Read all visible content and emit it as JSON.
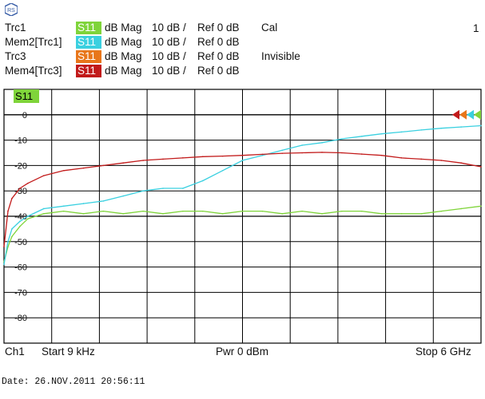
{
  "header": {
    "traces": [
      {
        "name": "Trc1",
        "badge": "S11",
        "badge_color": "#7fd43a",
        "format": "dB Mag",
        "scale": "10 dB /",
        "ref": "Ref 0 dB",
        "note": "Cal"
      },
      {
        "name": "Mem2[Trc1]",
        "badge": "S11",
        "badge_color": "#3ad0e0",
        "format": "dB Mag",
        "scale": "10 dB /",
        "ref": "Ref 0 dB",
        "note": ""
      },
      {
        "name": "Trc3",
        "badge": "S11",
        "badge_color": "#e8761a",
        "format": "dB Mag",
        "scale": "10 dB /",
        "ref": "Ref 0 dB",
        "note": "Invisible"
      },
      {
        "name": "Mem4[Trc3]",
        "badge": "S11",
        "badge_color": "#c21a1a",
        "format": "dB Mag",
        "scale": "10 dB /",
        "ref": "Ref 0 dB",
        "note": ""
      }
    ],
    "window_number": "1",
    "logo_icon": "rohde-schwarz-logo-icon"
  },
  "diagram": {
    "active_trace_label": "S11"
  },
  "footer": {
    "channel": "Ch1",
    "start": "Start  9 kHz",
    "power": "Pwr  0 dBm",
    "stop": "Stop  6 GHz"
  },
  "date_line": "Date: 26.NOV.2011   20:56:11",
  "chart_data": {
    "type": "line",
    "title": "",
    "xlabel": "",
    "ylabel": "",
    "xlim": [
      9e-06,
      6.0
    ],
    "x_unit": "GHz",
    "ylim": [
      -90,
      10
    ],
    "y_ticks": [
      0,
      -10,
      -20,
      -30,
      -40,
      -50,
      -60,
      -70,
      -80
    ],
    "y_tick_labels": [
      "0",
      "-10",
      "-20",
      "-30",
      "-40",
      "-50",
      "-60",
      "-70",
      "-80"
    ],
    "grid": true,
    "series": [
      {
        "color": "#7fd43a",
        "x": [
          0.0,
          0.05,
          0.1,
          0.2,
          0.3,
          0.5,
          0.75,
          1.0,
          1.25,
          1.5,
          1.75,
          2.0,
          2.25,
          2.5,
          2.75,
          3.0,
          3.25,
          3.5,
          3.75,
          4.0,
          4.25,
          4.5,
          4.75,
          5.0,
          5.25,
          5.5,
          5.75,
          6.0
        ],
        "y": [
          -58,
          -52,
          -48,
          -44,
          -41,
          -39,
          -38,
          -39,
          -38,
          -39,
          -38,
          -39,
          -38,
          -38,
          -39,
          -38,
          -38,
          -39,
          -38,
          -39,
          -38,
          -38,
          -39,
          -39,
          -39,
          -38,
          -37,
          -36
        ]
      },
      {
        "color": "#3ad0e0",
        "x": [
          0.0,
          0.05,
          0.1,
          0.2,
          0.3,
          0.5,
          0.75,
          1.0,
          1.25,
          1.5,
          1.75,
          2.0,
          2.25,
          2.5,
          2.75,
          3.0,
          3.25,
          3.5,
          3.75,
          4.0,
          4.25,
          4.5,
          4.75,
          5.0,
          5.25,
          5.5,
          5.75,
          6.0
        ],
        "y": [
          -59,
          -50,
          -45,
          -42,
          -40,
          -37,
          -36,
          -35,
          -34,
          -32,
          -30,
          -29,
          -29,
          -26,
          -22,
          -18,
          -16,
          -14,
          -12,
          -11,
          -9.5,
          -8.5,
          -7.5,
          -6.8,
          -6,
          -5.3,
          -4.8,
          -4.3
        ]
      },
      {
        "color": "#c21a1a",
        "x": [
          0.0,
          0.05,
          0.1,
          0.2,
          0.3,
          0.5,
          0.75,
          1.0,
          1.25,
          1.5,
          1.75,
          2.0,
          2.25,
          2.5,
          2.75,
          3.0,
          3.25,
          3.5,
          3.75,
          4.0,
          4.25,
          4.5,
          4.75,
          5.0,
          5.25,
          5.5,
          5.75,
          6.0
        ],
        "y": [
          -52,
          -38,
          -33,
          -29,
          -27,
          -24,
          -22,
          -21,
          -20,
          -19,
          -18,
          -17.5,
          -17,
          -16.5,
          -16.3,
          -16,
          -15.6,
          -15.2,
          -15,
          -14.8,
          -15,
          -15.5,
          -16,
          -17,
          -17.5,
          -18,
          -19,
          -20.5
        ]
      }
    ],
    "markers": [
      {
        "color": "#c21a1a"
      },
      {
        "color": "#e8761a"
      },
      {
        "color": "#3ad0e0"
      },
      {
        "color": "#7fd43a"
      }
    ]
  }
}
